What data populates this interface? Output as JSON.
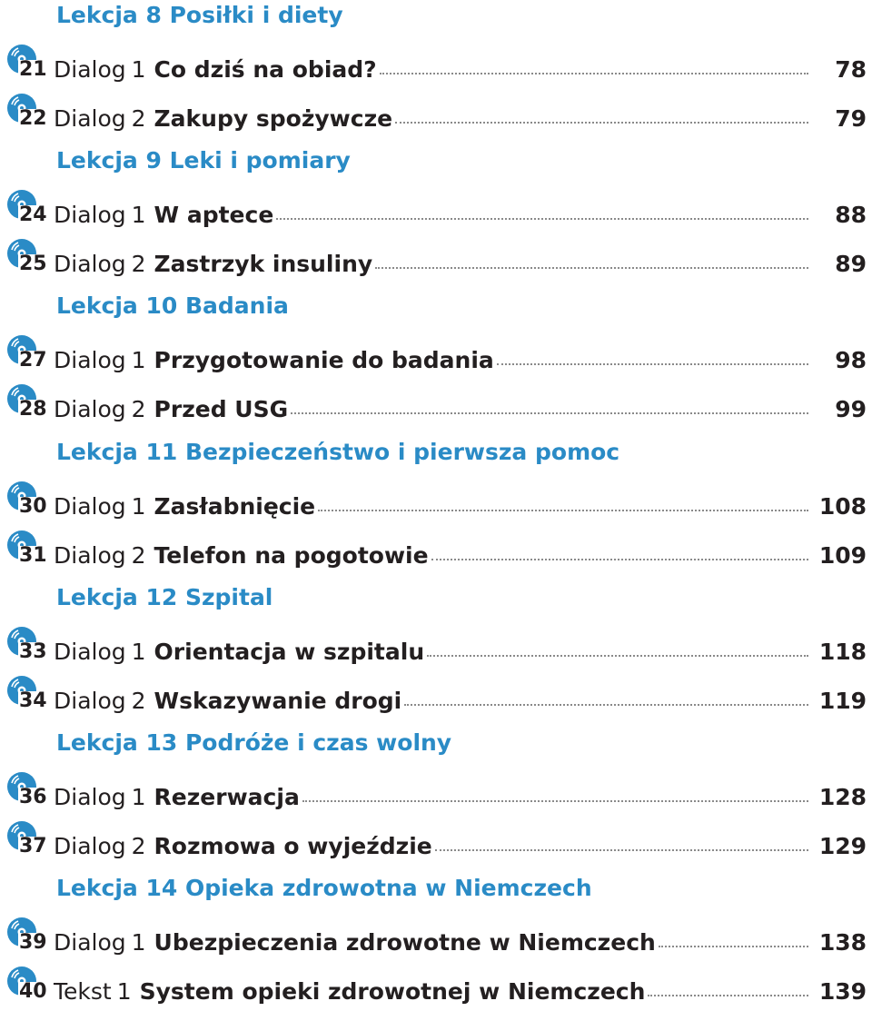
{
  "lessons": [
    {
      "title": "Lekcja 8 Posiłki i diety",
      "entries": [
        {
          "track": "21",
          "kind": "Dialog",
          "num": "1",
          "title": "Co dziś na obiad?",
          "page": "78"
        },
        {
          "track": "22",
          "kind": "Dialog",
          "num": "2",
          "title": "Zakupy spożywcze",
          "page": "79"
        }
      ]
    },
    {
      "title": "Lekcja 9 Leki i pomiary",
      "entries": [
        {
          "track": "24",
          "kind": "Dialog",
          "num": "1",
          "title": "W aptece",
          "page": "88"
        },
        {
          "track": "25",
          "kind": "Dialog",
          "num": "2",
          "title": "Zastrzyk insuliny",
          "page": "89"
        }
      ]
    },
    {
      "title": "Lekcja 10 Badania",
      "entries": [
        {
          "track": "27",
          "kind": "Dialog",
          "num": "1",
          "title": "Przygotowanie do badania",
          "page": "98"
        },
        {
          "track": "28",
          "kind": "Dialog",
          "num": "2",
          "title": "Przed USG",
          "page": "99"
        }
      ]
    },
    {
      "title": "Lekcja 11 Bezpieczeństwo i pierwsza pomoc",
      "entries": [
        {
          "track": "30",
          "kind": "Dialog",
          "num": "1",
          "title": "Zasłabnięcie",
          "page": "108"
        },
        {
          "track": "31",
          "kind": "Dialog",
          "num": "2",
          "title": "Telefon na pogotowie",
          "page": "109"
        }
      ]
    },
    {
      "title": "Lekcja 12 Szpital",
      "entries": [
        {
          "track": "33",
          "kind": "Dialog",
          "num": "1",
          "title": "Orientacja w szpitalu",
          "page": "118"
        },
        {
          "track": "34",
          "kind": "Dialog",
          "num": "2",
          "title": "Wskazywanie drogi",
          "page": "119"
        }
      ]
    },
    {
      "title": "Lekcja 13 Podróże i czas wolny",
      "entries": [
        {
          "track": "36",
          "kind": "Dialog",
          "num": "1",
          "title": "Rezerwacja",
          "page": "128"
        },
        {
          "track": "37",
          "kind": "Dialog",
          "num": "2",
          "title": "Rozmowa o wyjeździe",
          "page": "129"
        }
      ]
    },
    {
      "title": "Lekcja 14 Opieka zdrowotna w Niemczech",
      "entries": [
        {
          "track": "39",
          "kind": "Dialog",
          "num": "1",
          "title": "Ubezpieczenia zdrowotne w Niemczech",
          "page": "138"
        },
        {
          "track": "40",
          "kind": "Tekst",
          "num": "1",
          "title": "System opieki zdrowotnej w Niemczech",
          "page": "139"
        }
      ]
    }
  ],
  "colors": {
    "accent": "#2a8bc6",
    "text": "#231f20"
  },
  "icon": "audio-cd-icon"
}
